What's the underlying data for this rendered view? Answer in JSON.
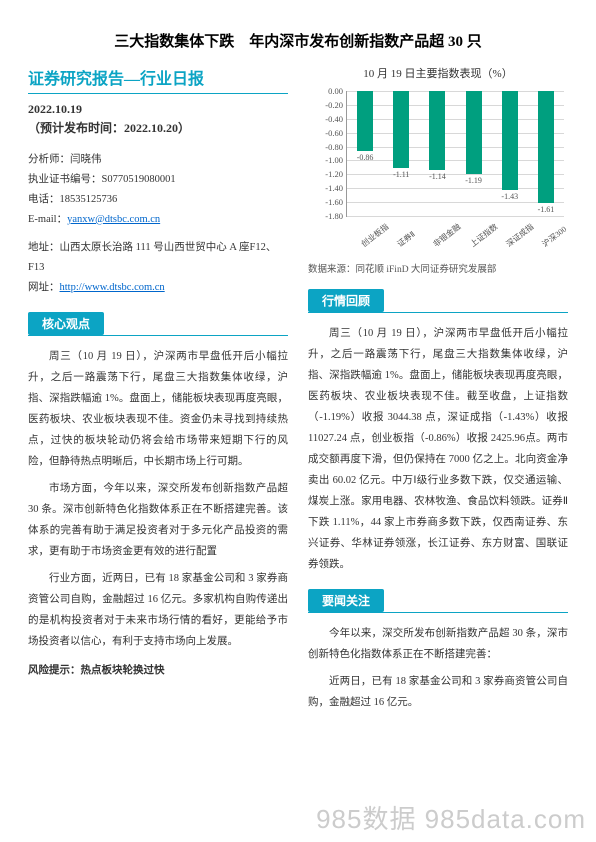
{
  "title": "三大指数集体下跌　年内深市发布创新指数产品超 30 只",
  "left": {
    "heading": "证券研究报告—行业日报",
    "date": "2022.10.19",
    "expected": "（预计发布时间：2022.10.20）",
    "analyst_label": "分析师：闫晓伟",
    "license": "执业证书编号：S0770519080001",
    "phone": "电话：18535125736",
    "email_label": "E-mail：",
    "email": "yanxw@dtsbc.com.cn",
    "address": "地址：山西太原长治路 111 号山西世贸中心 A 座F12、F13",
    "web_label": "网址：",
    "web": "http://www.dtsbc.com.cn",
    "core_tab": "核心观点",
    "p1": "周三（10 月 19 日），沪深两市早盘低开后小幅拉升，之后一路震荡下行，尾盘三大指数集体收绿，沪指、深指跌幅逾 1%。盘面上，储能板块表现再度亮眼，医药板块、农业板块表现不佳。资金仍未寻找到持续热点，过快的板块轮动仍将会给市场带来短期下行的风险，但静待热点明晰后，中长期市场上行可期。",
    "p2": "市场方面，今年以来，深交所发布创新指数产品超 30 条。深市创新特色化指数体系正在不断搭建完善。该体系的完善有助于满足投资者对于多元化产品投资的需求，更有助于市场资金更有效的进行配置",
    "p3": "行业方面，近两日，已有 18 家基金公司和 3 家券商资管公司自购，金融超过 16 亿元。多家机构自购传递出的是机构投资者对于未来市场行情的看好，更能给予市场投资者以信心，有利于支持市场向上发展。",
    "risk": "风险提示：热点板块轮换过快"
  },
  "right": {
    "chart_title": "10 月 19 日主要指数表现（%）",
    "chart": {
      "ylim": [
        -1.8,
        0.0
      ],
      "ytick_step": 0.2,
      "grid_color": "#d8d8d8",
      "axis_color": "#999999",
      "bar_color": "#009f7f",
      "label_color": "#555555",
      "label_fontsize": 8,
      "tick_fontsize": 8.5,
      "categories": [
        "创业板指",
        "证券Ⅱ",
        "非银金融",
        "上证指数",
        "深证成指",
        "沪深300"
      ],
      "values": [
        -0.86,
        -1.11,
        -1.14,
        -1.19,
        -1.43,
        -1.61
      ]
    },
    "chart_source": "数据来源：同花顺 iFinD 大同证券研究发展部",
    "review_tab": "行情回顾",
    "p1": "周三（10 月 19 日），沪深两市早盘低开后小幅拉升，之后一路震荡下行，尾盘三大指数集体收绿，沪指、深指跌幅逾 1%。盘面上，储能板块表现再度亮眼，医药板块、农业板块表现不佳。截至收盘，上证指数（-1.19%）收报 3044.38 点，深证成指（-1.43%）收报 11027.24 点，创业板指（-0.86%）收报 2425.96点。两市成交额再度下滑，但仍保持在 7000 亿之上。北向资金净卖出 60.02 亿元。中万Ⅰ级行业多数下跌，仅交通运输、煤炭上涨。家用电器、农林牧渔、食品饮料领跌。证券Ⅱ下跌 1.11%，44 家上市券商多数下跌，仅西南证券、东兴证券、华林证券领涨，长江证券、东方财富、国联证券领跌。",
    "focus_tab": "要闻关注",
    "p2": "今年以来，深交所发布创新指数产品超 30 条，深市创新特色化指数体系正在不断搭建完善：",
    "p3": "近两日，已有 18 家基金公司和 3 家券商资管公司自购，金融超过 16 亿元。"
  },
  "watermark": "985数据 985data.com"
}
